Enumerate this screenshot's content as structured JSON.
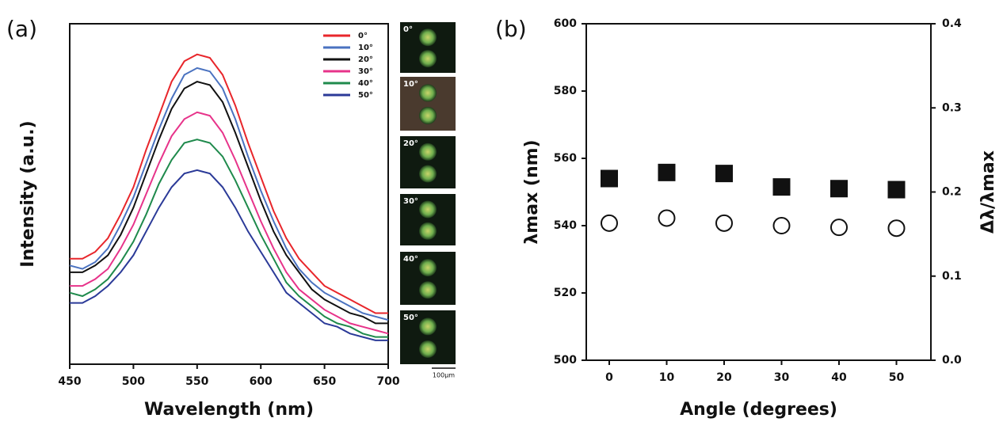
{
  "chart_data": [
    {
      "type": "line",
      "panel_label": "(a)",
      "xlabel": "Wavelength (nm)",
      "ylabel": "Intensity (a.u.)",
      "x": [
        450,
        460,
        470,
        480,
        490,
        500,
        510,
        520,
        530,
        540,
        550,
        560,
        570,
        580,
        590,
        600,
        610,
        620,
        630,
        640,
        650,
        660,
        670,
        680,
        690,
        700
      ],
      "xlim": [
        450,
        700
      ],
      "xticks": [
        450,
        500,
        550,
        600,
        650,
        700
      ],
      "ylim": [
        0,
        100
      ],
      "legend": "upper right",
      "series": [
        {
          "name": "0°",
          "color": "#e8262b",
          "values": [
            31,
            31,
            33,
            37,
            44,
            52,
            63,
            73,
            83,
            89,
            91,
            90,
            85,
            76,
            65,
            55,
            45,
            37,
            31,
            27,
            23,
            21,
            19,
            17,
            15,
            15
          ]
        },
        {
          "name": "10°",
          "color": "#4a72c0",
          "values": [
            29,
            28,
            30,
            34,
            41,
            49,
            59,
            69,
            78,
            85,
            87,
            86,
            81,
            72,
            61,
            51,
            42,
            34,
            28,
            24,
            21,
            19,
            17,
            15,
            14,
            13
          ]
        },
        {
          "name": "20°",
          "color": "#111111",
          "values": [
            27,
            27,
            29,
            32,
            38,
            46,
            56,
            66,
            75,
            81,
            83,
            82,
            77,
            68,
            58,
            48,
            39,
            32,
            27,
            22,
            19,
            17,
            15,
            14,
            12,
            12
          ]
        },
        {
          "name": "30°",
          "color": "#e7338a",
          "values": [
            23,
            23,
            25,
            28,
            34,
            41,
            50,
            59,
            67,
            72,
            74,
            73,
            68,
            60,
            51,
            42,
            34,
            27,
            22,
            19,
            16,
            14,
            12,
            11,
            10,
            9
          ]
        },
        {
          "name": "40°",
          "color": "#1f8a4c",
          "values": [
            21,
            20,
            22,
            25,
            30,
            36,
            44,
            53,
            60,
            65,
            66,
            65,
            61,
            54,
            46,
            38,
            31,
            24,
            20,
            17,
            14,
            12,
            11,
            9,
            8,
            8
          ]
        },
        {
          "name": "50°",
          "color": "#2b3a98",
          "values": [
            18,
            18,
            20,
            23,
            27,
            32,
            39,
            46,
            52,
            56,
            57,
            56,
            52,
            46,
            39,
            33,
            27,
            21,
            18,
            15,
            12,
            11,
            9,
            8,
            7,
            7
          ]
        }
      ],
      "insets": {
        "labels": [
          "0°",
          "10°",
          "20°",
          "30°",
          "40°",
          "50°"
        ],
        "scale_bar": "100μm"
      }
    },
    {
      "type": "scatter",
      "panel_label": "(b)",
      "xlabel": "Angle (degrees)",
      "ylabel": "λmax (nm)",
      "y2label": "Δλ/λmax",
      "x": [
        0,
        10,
        20,
        30,
        40,
        50
      ],
      "xlim": [
        -4,
        56
      ],
      "xticks": [
        0,
        10,
        20,
        30,
        40,
        50
      ],
      "ylim": [
        500,
        600
      ],
      "yticks": [
        500,
        520,
        540,
        560,
        580,
        600
      ],
      "y2lim": [
        0,
        0.4
      ],
      "y2ticks": [
        {
          "value": 0,
          "label": "0.0"
        },
        0.1,
        0.2,
        0.3,
        0.4
      ],
      "series": [
        {
          "color": "#111111",
          "marker": "square",
          "values": [
            554,
            555.8,
            555.5,
            551.5,
            551,
            550.7
          ]
        },
        {
          "color": "#111111",
          "marker": "circle",
          "axis": "y2",
          "values": [
            0.163,
            0.169,
            0.163,
            0.16,
            0.158,
            0.157
          ]
        }
      ]
    }
  ]
}
